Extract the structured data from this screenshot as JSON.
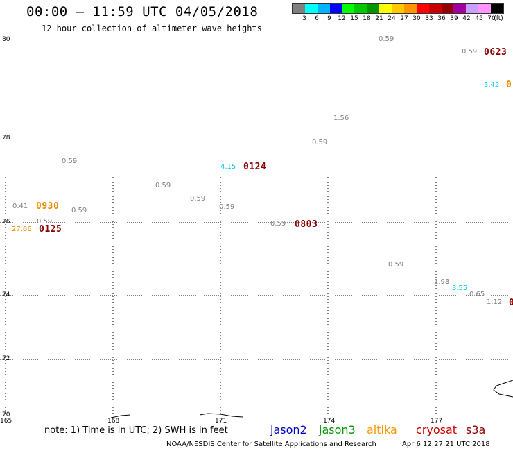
{
  "header": {
    "title": "00:00 – 11:59 UTC 04/05/2018",
    "subtitle": "12 hour collection of altimeter wave heights"
  },
  "legend": {
    "colors": [
      "#808080",
      "#00ffff",
      "#00b4ff",
      "#0000ff",
      "#00ff00",
      "#00c800",
      "#009600",
      "#ffff00",
      "#ffc800",
      "#ff9600",
      "#ff0000",
      "#c80000",
      "#960000",
      "#a000a0",
      "#c8a0ff",
      "#ff96ff",
      "#000000"
    ],
    "labels": [
      "3",
      "6",
      "9",
      "12",
      "15",
      "18",
      "21",
      "24",
      "27",
      "30",
      "33",
      "36",
      "39",
      "42",
      "45",
      "70",
      "(ft)"
    ]
  },
  "axes": {
    "lat_labels": [
      "80",
      "78",
      "76",
      "74",
      "72",
      "70"
    ],
    "lon_labels": [
      "165",
      "168",
      "171",
      "174",
      "177"
    ]
  },
  "observations": [
    {
      "value": "0.59",
      "color": "#808080"
    },
    {
      "value": "0.59",
      "color": "#808080"
    },
    {
      "value": "3.42",
      "color": "#00c8e6"
    },
    {
      "value": "1.56",
      "color": "#808080"
    },
    {
      "value": "0.59",
      "color": "#808080"
    },
    {
      "value": "0.59",
      "color": "#808080"
    },
    {
      "value": "4.15",
      "color": "#00c8e6"
    },
    {
      "value": "0.59",
      "color": "#808080"
    },
    {
      "value": "0.59",
      "color": "#808080"
    },
    {
      "value": "0.41",
      "color": "#808080"
    },
    {
      "value": "0.59",
      "color": "#808080"
    },
    {
      "value": "0.59",
      "color": "#808080"
    },
    {
      "value": "0.59",
      "color": "#808080"
    },
    {
      "value": "27.66",
      "color": "#e68c00"
    },
    {
      "value": "0.59",
      "color": "#808080"
    },
    {
      "value": "0.59",
      "color": "#808080"
    },
    {
      "value": "1.98",
      "color": "#808080"
    },
    {
      "value": "3.55",
      "color": "#00c8e6"
    },
    {
      "value": "0.65",
      "color": "#808080"
    },
    {
      "value": "1.12",
      "color": "#808080"
    }
  ],
  "times": [
    {
      "value": "0623",
      "color": "#8c0000"
    },
    {
      "value": "0",
      "color": "#e68c00"
    },
    {
      "value": "0124",
      "color": "#8c0000"
    },
    {
      "value": "0930",
      "color": "#e68c00"
    },
    {
      "value": "0125",
      "color": "#8c0000"
    },
    {
      "value": "0803",
      "color": "#8c0000"
    },
    {
      "value": "0",
      "color": "#8c0000"
    }
  ],
  "footer": {
    "note": "note: 1) Time is in UTC; 2) SWH is in feet",
    "satellites": [
      {
        "name": "jason2",
        "color": "#0000cc"
      },
      {
        "name": "jason3",
        "color": "#009600"
      },
      {
        "name": "altika",
        "color": "#ff9600"
      },
      {
        "name": "cryosat",
        "color": "#c80000"
      },
      {
        "name": "s3a",
        "color": "#8c0000"
      }
    ],
    "credit": "NOAA/NESDIS Center for Satellite Applications and Research",
    "timestamp": "Apr  6 12:27:21 UTC 2018"
  }
}
